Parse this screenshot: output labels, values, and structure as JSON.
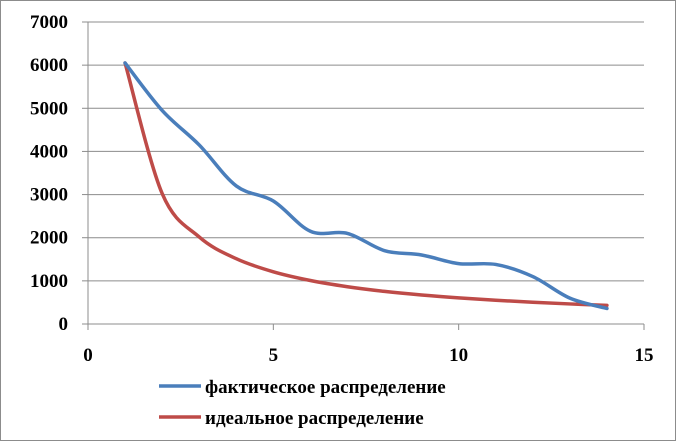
{
  "chart_data": {
    "type": "line",
    "xlim": [
      0,
      15
    ],
    "ylim": [
      0,
      7000
    ],
    "x_ticks": [
      0,
      5,
      10,
      15
    ],
    "y_ticks": [
      0,
      1000,
      2000,
      3000,
      4000,
      5000,
      6000,
      7000
    ],
    "grid": "horizontal",
    "legend_position": "bottom",
    "series": [
      {
        "name": "фактическое распределение",
        "color": "#4a7ebb",
        "x": [
          1,
          2,
          3,
          4,
          5,
          6,
          7,
          8,
          9,
          10,
          11,
          12,
          13,
          14
        ],
        "y": [
          6050,
          4950,
          4150,
          3200,
          2850,
          2150,
          2100,
          1700,
          1600,
          1400,
          1380,
          1100,
          600,
          360
        ]
      },
      {
        "name": "идеальное распределение",
        "color": "#be4b48",
        "x": [
          1,
          2,
          3,
          4,
          5,
          6,
          7,
          8,
          9,
          10,
          11,
          12,
          13,
          14
        ],
        "y": [
          6050,
          3025,
          2017,
          1513,
          1210,
          1008,
          864,
          756,
          672,
          605,
          550,
          504,
          465,
          432
        ]
      }
    ]
  }
}
